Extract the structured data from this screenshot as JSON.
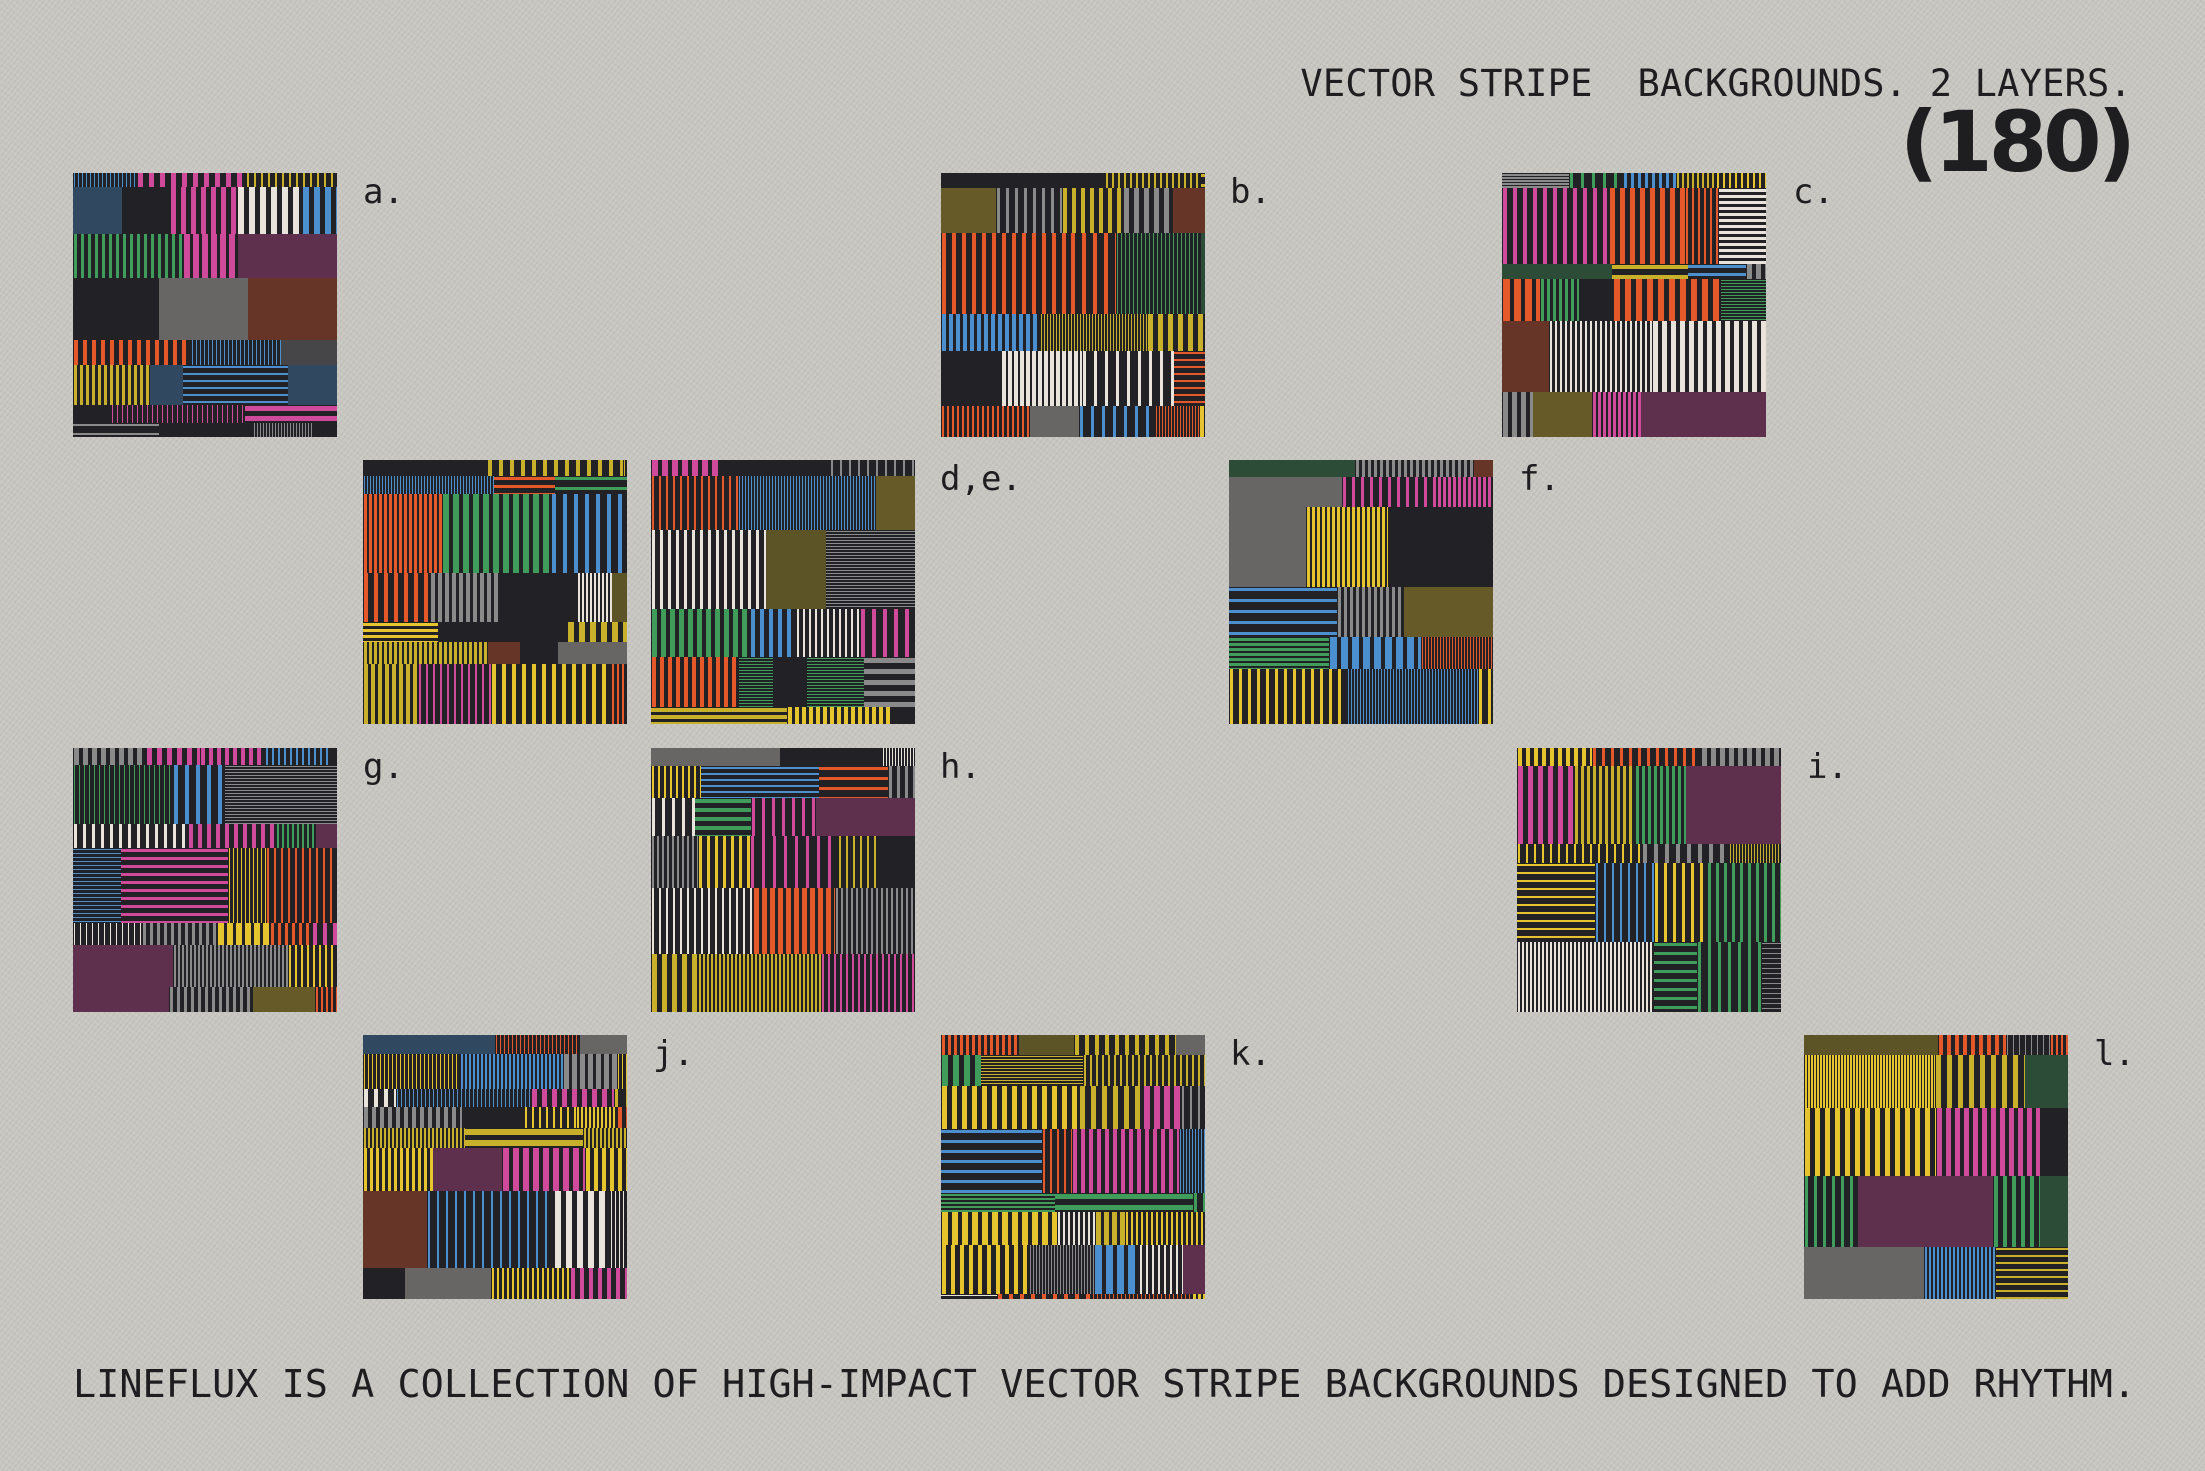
{
  "header": {
    "subtitle": "VECTOR STRIPE  BACKGROUNDS. 2 LAYERS.",
    "count": "(180)"
  },
  "footer": {
    "text": "LINEFLUX IS A COLLECTION OF HIGH-IMPACT VECTOR STRIPE BACKGROUNDS DESIGNED TO ADD RHYTHM."
  },
  "labels": {
    "a": "a.",
    "b": "b.",
    "c": "c.",
    "de": "d,e.",
    "f": "f.",
    "g": "g.",
    "h": "h.",
    "i": "i.",
    "j": "j.",
    "k": "k.",
    "l": "l."
  },
  "palette": [
    "#e8e4dc",
    "#e6c42e",
    "#cf4a9a",
    "#4b8fcf",
    "#3f9c5a",
    "#e4582a",
    "#8a8a8a",
    "#c9b02a"
  ],
  "tile_background": "#222226"
}
